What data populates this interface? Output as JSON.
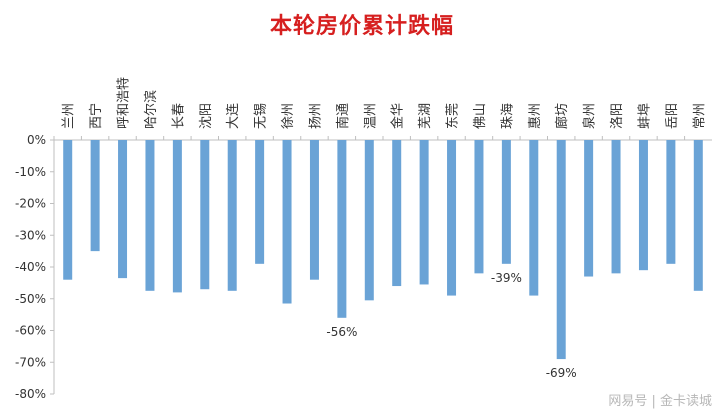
{
  "chart_data": {
    "type": "bar",
    "title": "本轮房价累计跌幅",
    "xlabel": "",
    "ylabel": "",
    "ylim": [
      -80,
      0
    ],
    "ytick_labels": [
      "0%",
      "-10%",
      "-20%",
      "-30%",
      "-40%",
      "-50%",
      "-60%",
      "-70%",
      "-80%"
    ],
    "grid": false,
    "legend": "none",
    "colors": {
      "bar": "#6aa3d6",
      "title": "#d61f1f",
      "axis": "#bfbfbf",
      "text": "#333333"
    },
    "categories": [
      "兰州",
      "西宁",
      "呼和浩特",
      "哈尔滨",
      "长春",
      "沈阳",
      "大连",
      "无锡",
      "徐州",
      "扬州",
      "南通",
      "温州",
      "金华",
      "芜湖",
      "东莞",
      "佛山",
      "珠海",
      "惠州",
      "廊坊",
      "泉州",
      "洛阳",
      "蚌埠",
      "岳阳",
      "常州"
    ],
    "values": [
      -44,
      -35,
      -43.5,
      -47.5,
      -48,
      -47,
      -47.5,
      -39,
      -51.5,
      -44,
      -56,
      -50.5,
      -46,
      -45.5,
      -49,
      -42,
      -39,
      -49,
      -69,
      -43,
      -42,
      -41,
      -39,
      -47.5
    ],
    "data_labels": [
      {
        "index": 10,
        "text": "-56%"
      },
      {
        "index": 16,
        "text": "-39%"
      },
      {
        "index": 18,
        "text": "-69%"
      }
    ]
  },
  "watermark": "网易号 | 金卡读城"
}
